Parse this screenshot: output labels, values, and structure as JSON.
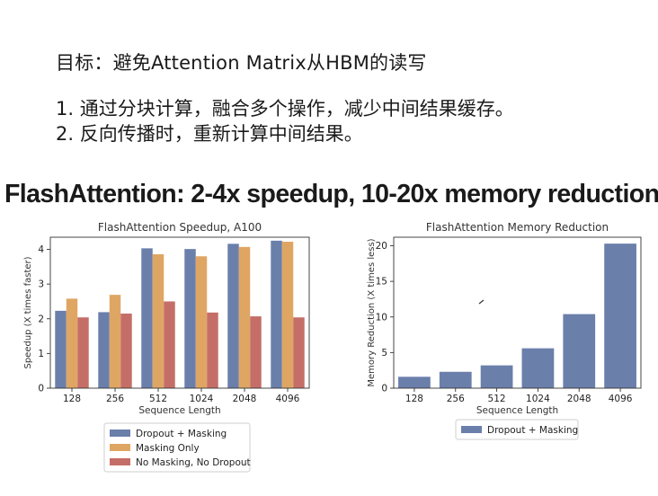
{
  "slide": {
    "goal": "目标：避免Attention Matrix从HBM的读写",
    "points": [
      "1. 通过分块计算，融合多个操作，减少中间结果缓存。",
      "2. 反向传播时，重新计算中间结果。"
    ],
    "headline": "FlashAttention: 2-4x speedup, 10-20x memory reduction"
  },
  "colors": {
    "blue": "#6b7fab",
    "orange": "#dfa663",
    "red": "#c56e68"
  },
  "chart_data": [
    {
      "type": "bar",
      "title": "FlashAttention Speedup, A100",
      "xlabel": "Sequence Length",
      "ylabel": "Speedup (X times faster)",
      "categories": [
        "128",
        "256",
        "512",
        "1024",
        "2048",
        "4096"
      ],
      "yticks": [
        "0",
        "1",
        "2",
        "3",
        "4"
      ],
      "ylim": [
        0,
        4.35
      ],
      "legend_position": "below",
      "series": [
        {
          "name": "Dropout + Masking",
          "values": [
            2.23,
            2.19,
            4.03,
            4.01,
            4.16,
            4.25
          ],
          "color": "#6b7fab"
        },
        {
          "name": "Masking Only",
          "values": [
            2.58,
            2.69,
            3.86,
            3.8,
            4.07,
            4.22
          ],
          "color": "#dfa663"
        },
        {
          "name": "No Masking, No Dropout",
          "values": [
            2.04,
            2.15,
            2.5,
            2.18,
            2.07,
            2.04
          ],
          "color": "#c56e68"
        }
      ]
    },
    {
      "type": "bar",
      "title": "FlashAttention Memory Reduction",
      "xlabel": "Sequence Length",
      "ylabel": "Memory Reduction (X times less)",
      "categories": [
        "128",
        "256",
        "512",
        "1024",
        "2048",
        "4096"
      ],
      "yticks": [
        "0",
        "5",
        "10",
        "15",
        "20"
      ],
      "ylim": [
        0,
        21.2
      ],
      "legend_position": "below",
      "series": [
        {
          "name": "Dropout + Masking",
          "values": [
            1.6,
            2.3,
            3.2,
            5.6,
            10.4,
            20.3
          ],
          "color": "#6b7fab"
        }
      ]
    }
  ]
}
